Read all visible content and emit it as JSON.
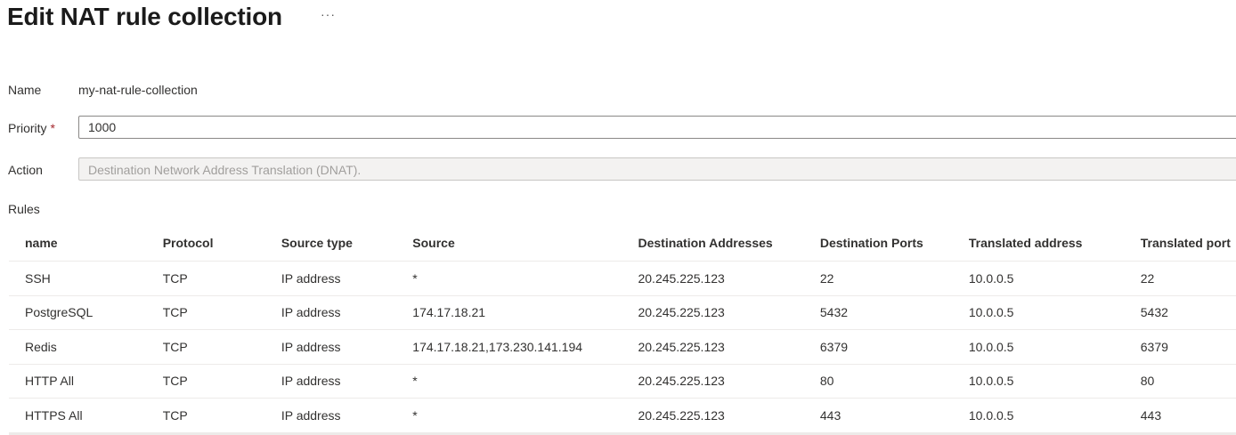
{
  "header": {
    "title": "Edit NAT rule collection",
    "more_label": "···"
  },
  "form": {
    "name_label": "Name",
    "name_value": "my-nat-rule-collection",
    "priority_label": "Priority",
    "required_marker": "*",
    "priority_value": "1000",
    "action_label": "Action",
    "action_value": "Destination Network Address Translation (DNAT)."
  },
  "rules": {
    "label": "Rules",
    "columns": [
      "name",
      "Protocol",
      "Source type",
      "Source",
      "Destination Addresses",
      "Destination Ports",
      "Translated address",
      "Translated port"
    ],
    "rows": [
      [
        "SSH",
        "TCP",
        "IP address",
        "*",
        "20.245.225.123",
        "22",
        "10.0.0.5",
        "22"
      ],
      [
        "PostgreSQL",
        "TCP",
        "IP address",
        "174.17.18.21",
        "20.245.225.123",
        "5432",
        "10.0.0.5",
        "5432"
      ],
      [
        "Redis",
        "TCP",
        "IP address",
        "174.17.18.21,173.230.141.194",
        "20.245.225.123",
        "6379",
        "10.0.0.5",
        "6379"
      ],
      [
        "HTTP All",
        "TCP",
        "IP address",
        "*",
        "20.245.225.123",
        "80",
        "10.0.0.5",
        "80"
      ],
      [
        "HTTPS All",
        "TCP",
        "IP address",
        "*",
        "20.245.225.123",
        "443",
        "10.0.0.5",
        "443"
      ]
    ]
  }
}
